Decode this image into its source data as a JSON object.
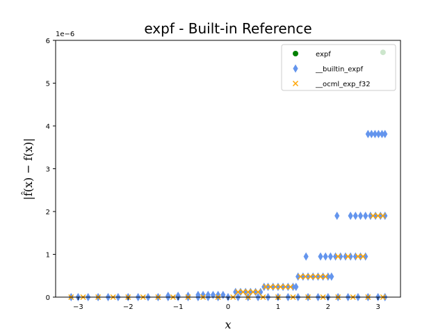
{
  "chart_data": {
    "type": "scatter",
    "title": "expf - Built-in Reference",
    "xlabel": "x",
    "ylabel": "|f̂(x) − f(x)|",
    "y_scale_label": "1e−6",
    "xlim": [
      -3.45,
      3.45
    ],
    "ylim": [
      0,
      6
    ],
    "x_ticks": [
      -3,
      -2,
      -1,
      0,
      1,
      2,
      3
    ],
    "y_ticks": [
      0,
      1,
      2,
      3,
      4,
      5,
      6
    ],
    "x_tick_labels": [
      "−3",
      "−2",
      "−1",
      "0",
      "1",
      "2",
      "3"
    ],
    "y_tick_labels": [
      "0",
      "1",
      "2",
      "3",
      "4",
      "5",
      "6"
    ],
    "legend_position": "top-right",
    "grid": false,
    "colors": {
      "expf": "#008000",
      "builtin": "#6495ED",
      "ocml": "#FFA500"
    },
    "series": [
      {
        "name": "expf",
        "marker": "circle",
        "points": [
          [
            3.1,
            5.72
          ]
        ]
      },
      {
        "name": "__builtin_expf",
        "marker": "diamond",
        "points": [
          [
            -3.14,
            0
          ],
          [
            -3.0,
            0
          ],
          [
            -2.8,
            0
          ],
          [
            -2.6,
            0
          ],
          [
            -2.4,
            0
          ],
          [
            -2.2,
            0
          ],
          [
            -2.0,
            0
          ],
          [
            -1.8,
            0
          ],
          [
            -1.6,
            0
          ],
          [
            -1.4,
            0
          ],
          [
            -1.2,
            0
          ],
          [
            -1.0,
            0
          ],
          [
            -0.8,
            0
          ],
          [
            -0.6,
            0
          ],
          [
            -0.4,
            0
          ],
          [
            -0.2,
            0
          ],
          [
            0.0,
            0
          ],
          [
            0.2,
            0
          ],
          [
            0.4,
            0
          ],
          [
            0.6,
            0
          ],
          [
            0.8,
            0
          ],
          [
            1.0,
            0
          ],
          [
            1.2,
            0
          ],
          [
            1.4,
            0
          ],
          [
            1.6,
            0
          ],
          [
            1.8,
            0
          ],
          [
            2.0,
            0
          ],
          [
            2.2,
            0
          ],
          [
            2.4,
            0
          ],
          [
            2.6,
            0
          ],
          [
            2.8,
            0
          ],
          [
            3.0,
            0
          ],
          [
            3.14,
            0
          ],
          [
            -0.6,
            0.05
          ],
          [
            -0.5,
            0.05
          ],
          [
            -0.4,
            0.05
          ],
          [
            -0.3,
            0.05
          ],
          [
            -0.2,
            0.05
          ],
          [
            -0.1,
            0.05
          ],
          [
            -1.2,
            0.03
          ],
          [
            -1.0,
            0.03
          ],
          [
            -0.8,
            0.03
          ],
          [
            0.15,
            0.12
          ],
          [
            0.25,
            0.12
          ],
          [
            0.35,
            0.12
          ],
          [
            0.45,
            0.12
          ],
          [
            0.55,
            0.12
          ],
          [
            0.65,
            0.12
          ],
          [
            0.72,
            0.24
          ],
          [
            0.8,
            0.24
          ],
          [
            0.9,
            0.24
          ],
          [
            1.0,
            0.24
          ],
          [
            1.1,
            0.24
          ],
          [
            1.2,
            0.24
          ],
          [
            1.3,
            0.24
          ],
          [
            1.36,
            0.24
          ],
          [
            1.4,
            0.48
          ],
          [
            1.5,
            0.48
          ],
          [
            1.6,
            0.48
          ],
          [
            1.7,
            0.48
          ],
          [
            1.8,
            0.48
          ],
          [
            1.9,
            0.48
          ],
          [
            2.0,
            0.48
          ],
          [
            2.07,
            0.48
          ],
          [
            1.56,
            0.95
          ],
          [
            1.85,
            0.95
          ],
          [
            1.95,
            0.95
          ],
          [
            2.05,
            0.95
          ],
          [
            2.15,
            0.95
          ],
          [
            2.25,
            0.95
          ],
          [
            2.35,
            0.95
          ],
          [
            2.45,
            0.95
          ],
          [
            2.55,
            0.95
          ],
          [
            2.65,
            0.95
          ],
          [
            2.75,
            0.95
          ],
          [
            2.18,
            1.9
          ],
          [
            2.45,
            1.9
          ],
          [
            2.55,
            1.9
          ],
          [
            2.65,
            1.9
          ],
          [
            2.75,
            1.9
          ],
          [
            2.85,
            1.9
          ],
          [
            2.95,
            1.9
          ],
          [
            3.05,
            1.9
          ],
          [
            3.14,
            1.9
          ],
          [
            2.8,
            3.81
          ],
          [
            2.87,
            3.81
          ],
          [
            2.94,
            3.81
          ],
          [
            3.01,
            3.81
          ],
          [
            3.08,
            3.81
          ],
          [
            3.14,
            3.81
          ]
        ]
      },
      {
        "name": "__ocml_exp_f32",
        "marker": "x",
        "points": [
          [
            -3.14,
            0
          ],
          [
            -2.9,
            0
          ],
          [
            -2.6,
            0
          ],
          [
            -2.3,
            0
          ],
          [
            -2.0,
            0
          ],
          [
            -1.7,
            0
          ],
          [
            -1.4,
            0
          ],
          [
            -1.1,
            0
          ],
          [
            -0.8,
            0
          ],
          [
            -0.5,
            0
          ],
          [
            -0.2,
            0
          ],
          [
            0.1,
            0
          ],
          [
            0.4,
            0
          ],
          [
            0.7,
            0
          ],
          [
            1.0,
            0
          ],
          [
            1.3,
            0
          ],
          [
            1.6,
            0
          ],
          [
            1.9,
            0
          ],
          [
            2.2,
            0
          ],
          [
            2.5,
            0
          ],
          [
            2.8,
            0
          ],
          [
            3.1,
            0
          ],
          [
            0.2,
            0.12
          ],
          [
            0.3,
            0.12
          ],
          [
            0.4,
            0.12
          ],
          [
            0.5,
            0.12
          ],
          [
            0.6,
            0.12
          ],
          [
            0.75,
            0.24
          ],
          [
            0.85,
            0.24
          ],
          [
            0.95,
            0.24
          ],
          [
            1.05,
            0.24
          ],
          [
            1.15,
            0.24
          ],
          [
            1.25,
            0.24
          ],
          [
            1.45,
            0.48
          ],
          [
            1.55,
            0.48
          ],
          [
            1.65,
            0.48
          ],
          [
            1.75,
            0.48
          ],
          [
            1.85,
            0.48
          ],
          [
            1.95,
            0.48
          ],
          [
            2.2,
            0.95
          ],
          [
            2.4,
            0.95
          ],
          [
            2.6,
            0.95
          ],
          [
            2.7,
            0.95
          ],
          [
            2.9,
            1.9
          ],
          [
            3.0,
            1.9
          ],
          [
            3.1,
            1.9
          ]
        ]
      }
    ]
  }
}
